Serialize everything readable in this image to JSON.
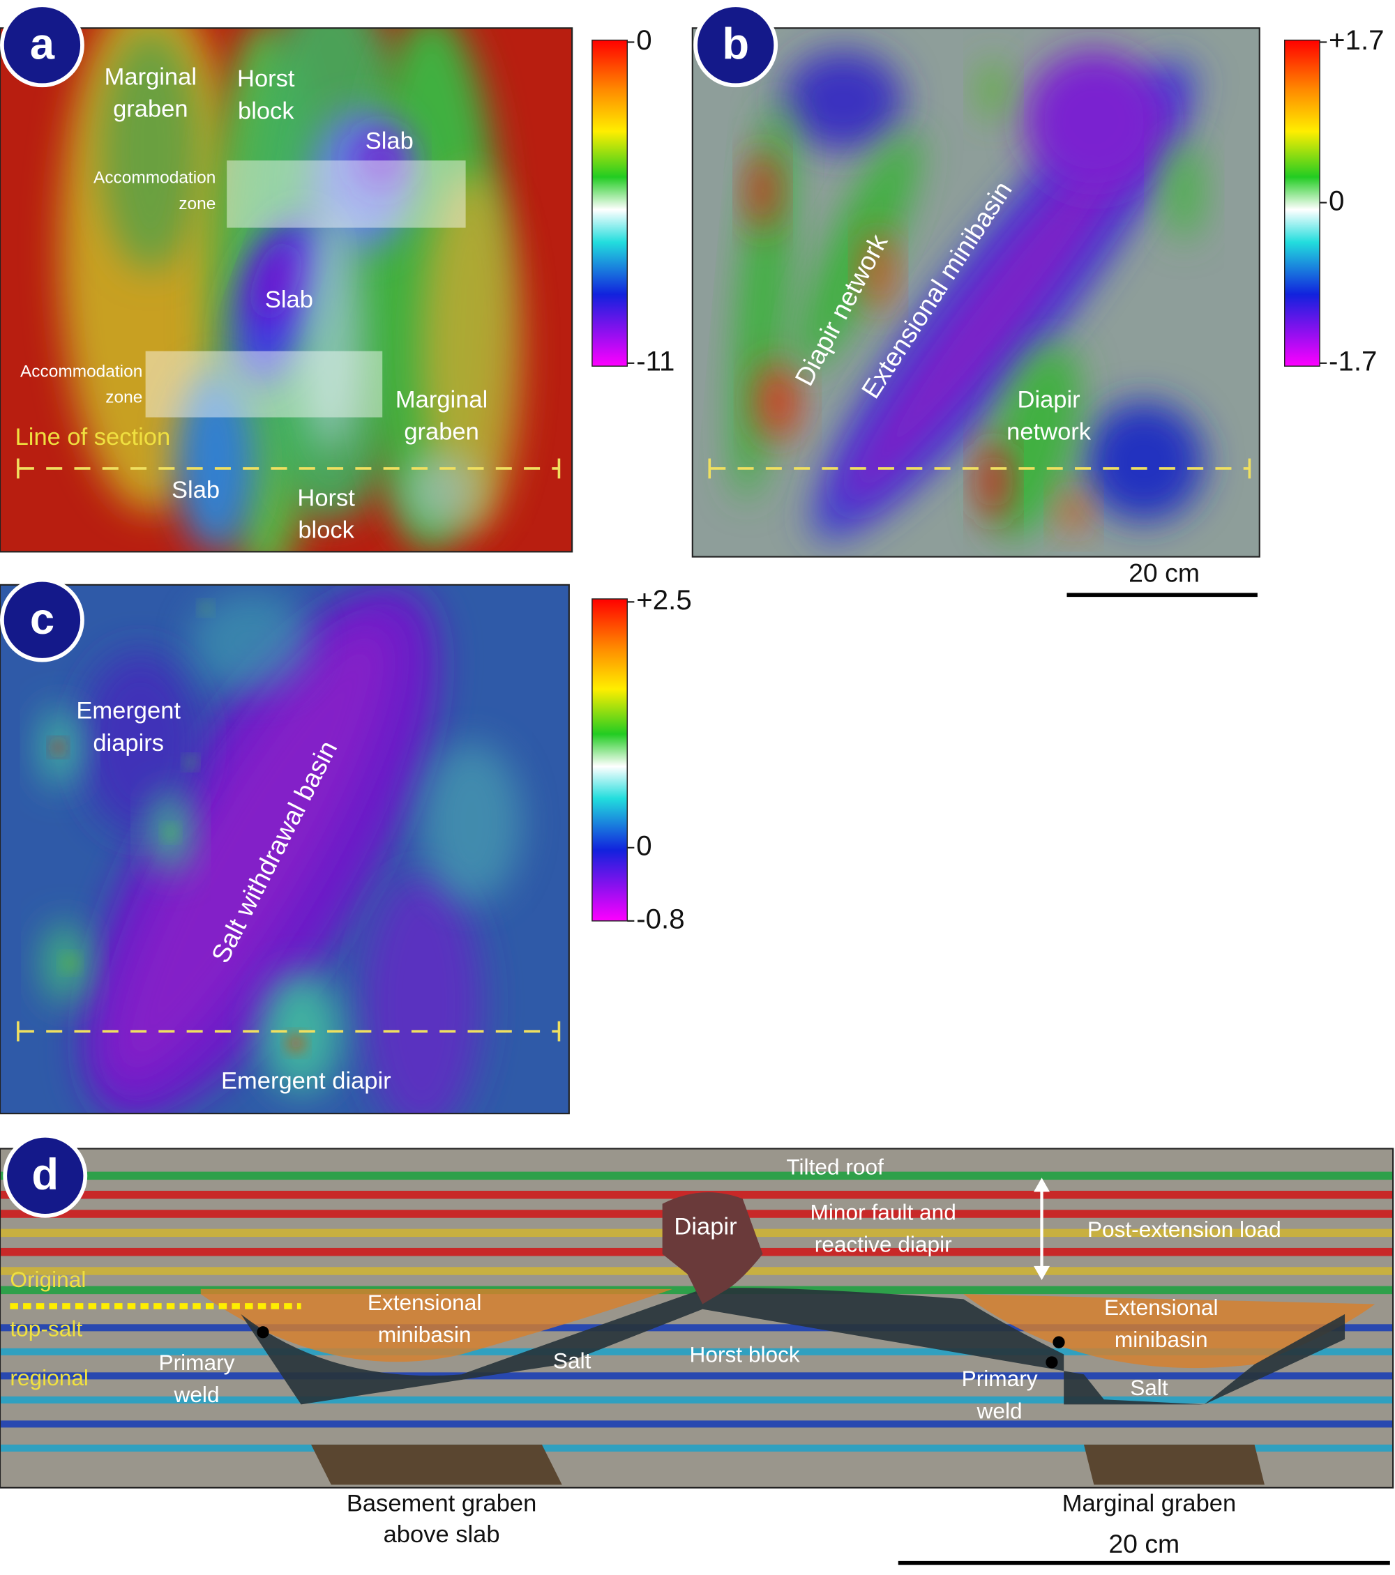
{
  "panels": [
    {
      "label": "a",
      "colorbar": [
        "0",
        "-11"
      ],
      "annotations": [
        [
          "Marginal",
          "graben"
        ],
        [
          "Horst",
          "block"
        ],
        [
          "Slab"
        ],
        [
          "Accommodation",
          "zone"
        ],
        [
          "Slab"
        ],
        [
          "Accommodation",
          "zone"
        ],
        [
          "Marginal",
          "graben"
        ],
        [
          "Line of section"
        ],
        [
          "Slab"
        ],
        [
          "Horst",
          "block"
        ]
      ]
    },
    {
      "label": "b",
      "colorbar": [
        "+1.7",
        "0",
        "-1.7"
      ],
      "annotations": [
        [
          "Diapir network"
        ],
        [
          "Extensional minibasin"
        ],
        [
          "Diapir",
          "network"
        ]
      ]
    },
    {
      "label": "c",
      "colorbar": [
        "+2.5",
        "0",
        "-0.8"
      ],
      "annotations": [
        [
          "Emergent",
          "diapirs"
        ],
        [
          "Salt withdrawal basin"
        ],
        [
          "Emergent diapir"
        ]
      ]
    },
    {
      "label": "d",
      "colorbar": [],
      "annotations": [
        [
          "Tilted roof"
        ],
        [
          "Diapir"
        ],
        [
          "Minor fault and",
          "reactive diapir"
        ],
        [
          "Post-extension load"
        ],
        [
          "Original",
          "top-salt",
          "regional"
        ],
        [
          "Extensional",
          "minibasin"
        ],
        [
          "Salt"
        ],
        [
          "Horst block"
        ],
        [
          "Primary",
          "weld"
        ],
        [
          "Extensional",
          "minibasin"
        ],
        [
          "Primary",
          "weld"
        ],
        [
          "Salt"
        ]
      ]
    }
  ],
  "captions": [
    [
      "Basement graben",
      "above slab"
    ],
    [
      "Marginal graben"
    ]
  ],
  "scale_bars": [
    "20 cm",
    "20 cm"
  ]
}
